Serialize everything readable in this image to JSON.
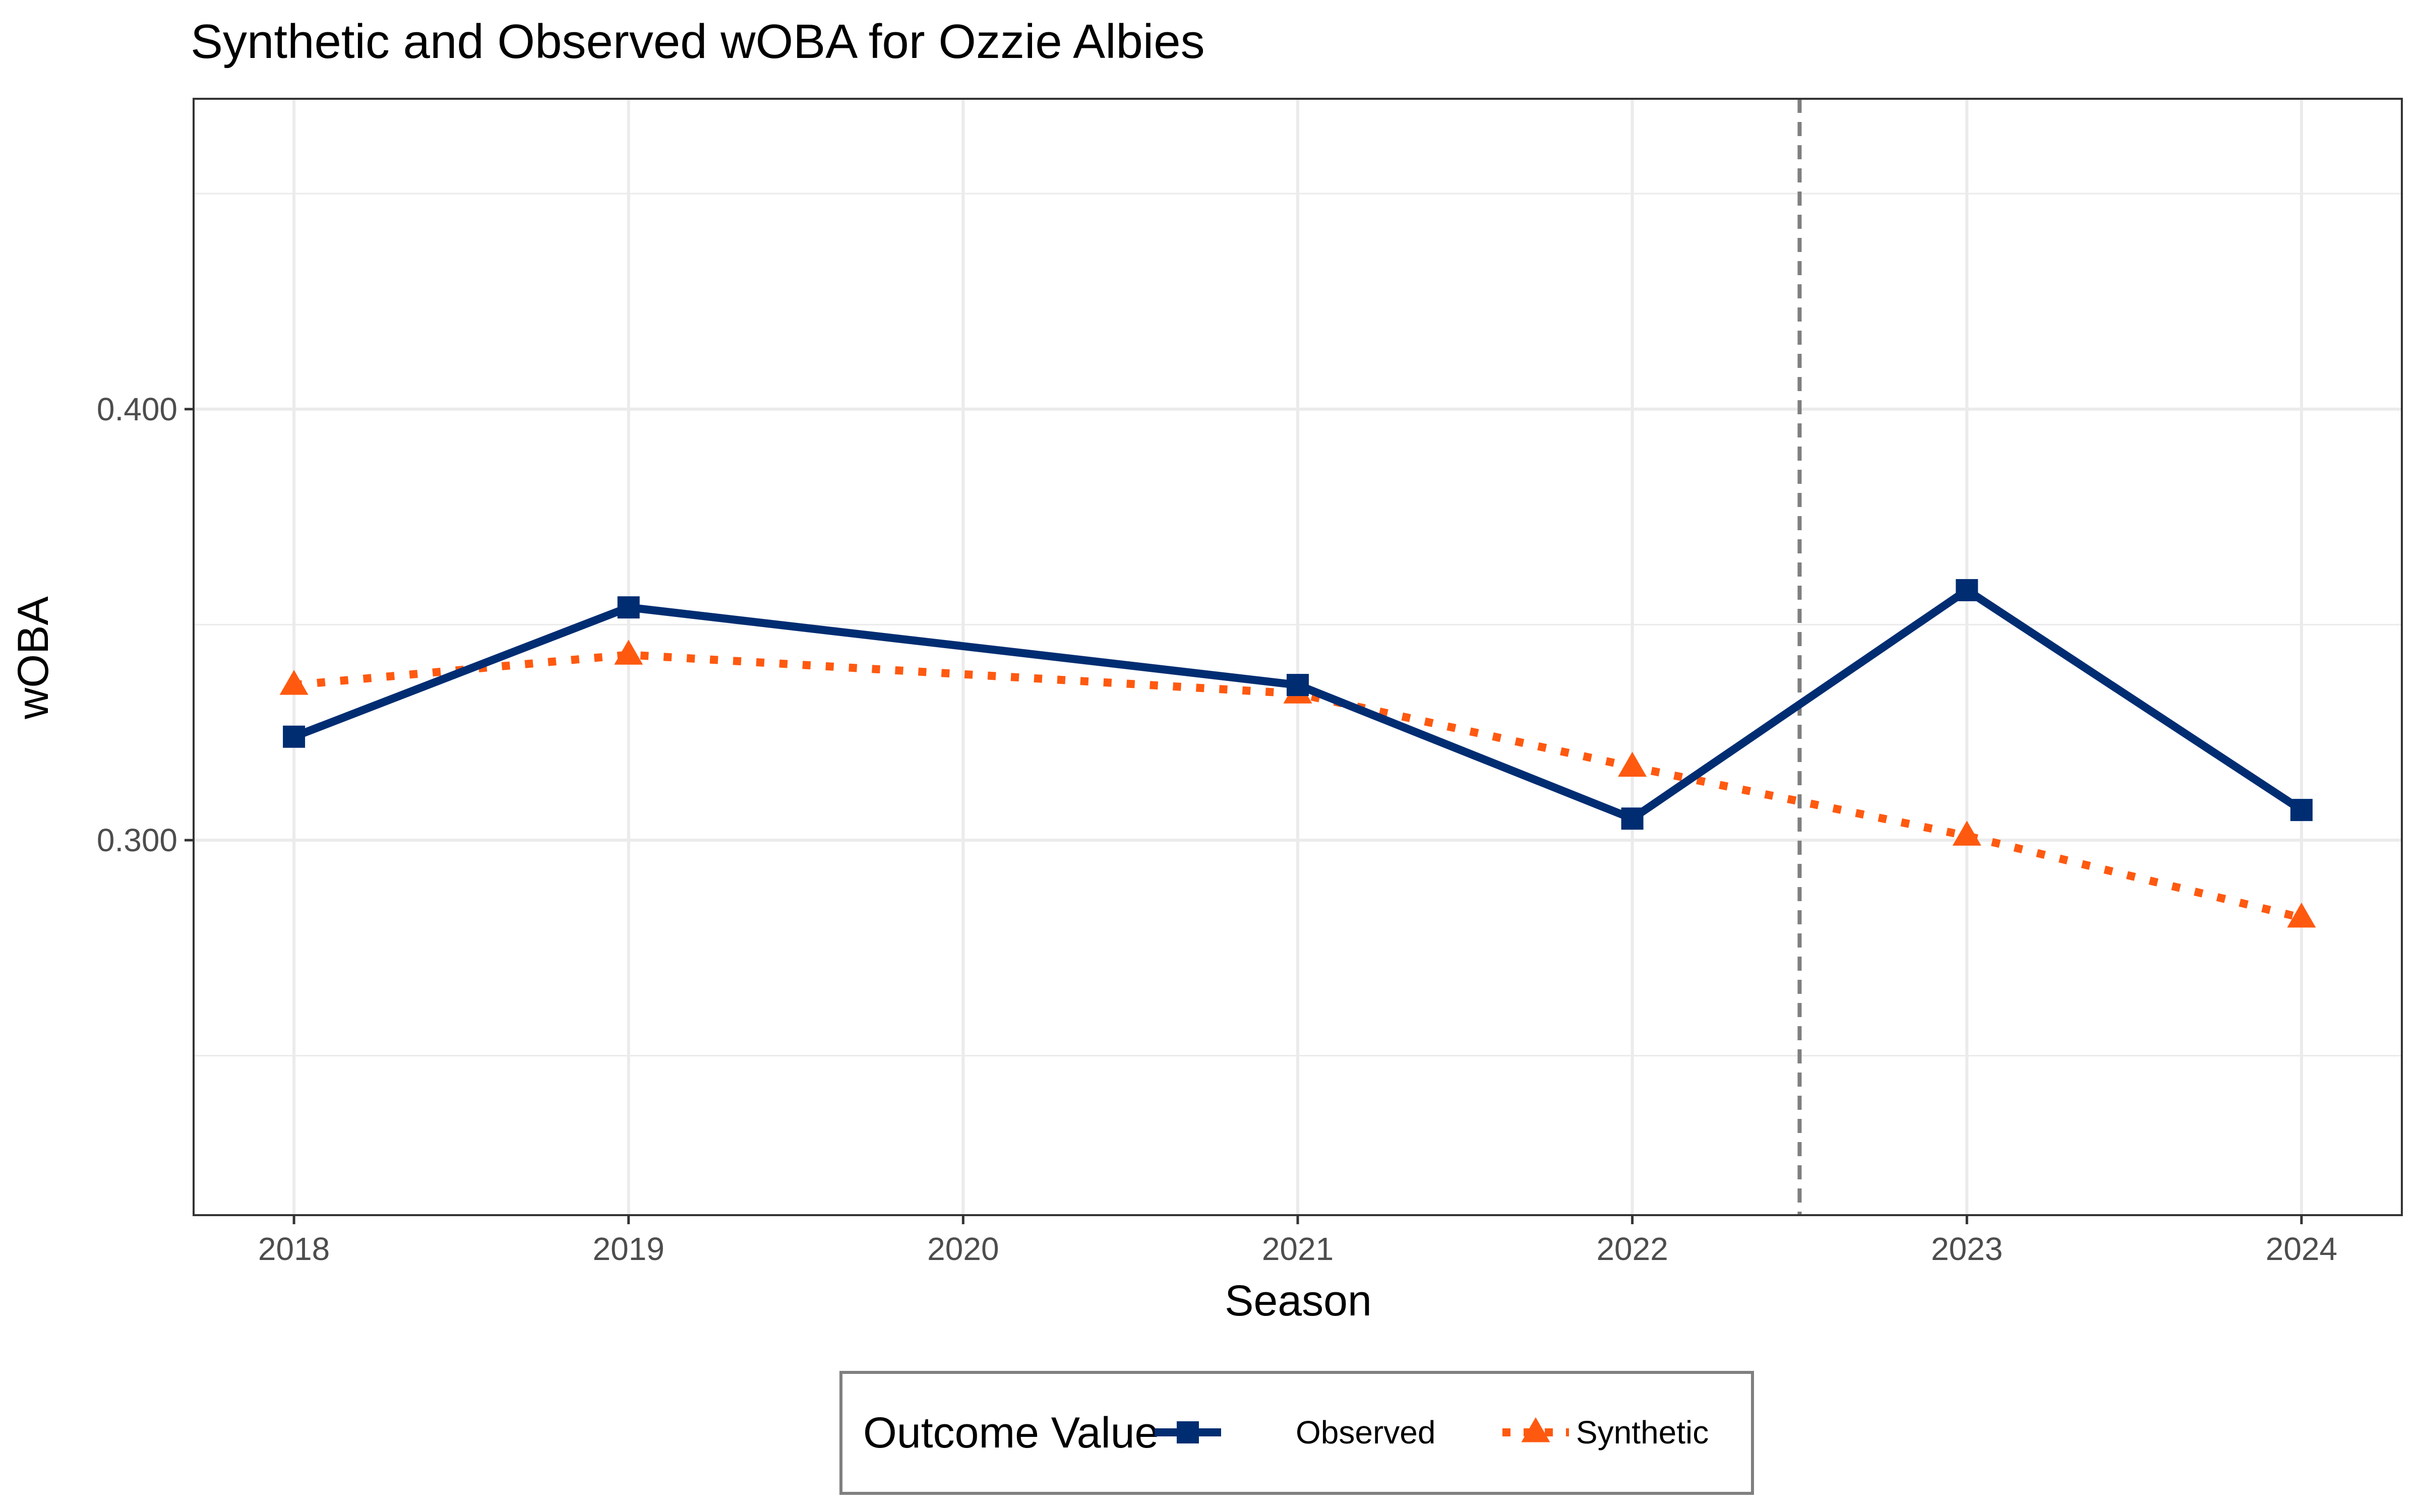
{
  "chart_data": {
    "type": "line",
    "title": "Synthetic and Observed wOBA for Ozzie Albies",
    "xlabel": "Season",
    "ylabel": "wOBA",
    "x": [
      2018,
      2019,
      2020,
      2021,
      2022,
      2023,
      2024
    ],
    "x_ticks": [
      "2018",
      "2019",
      "2020",
      "2021",
      "2022",
      "2023",
      "2024"
    ],
    "xlim": [
      2017.7,
      2024.3
    ],
    "y_ticks": [
      "0.400",
      "0.300"
    ],
    "ylim": [
      0.213,
      0.472
    ],
    "grid": true,
    "intervention_x": 2022.5,
    "series": [
      {
        "name": "Observed",
        "color": "#002D72",
        "line_style": "solid",
        "marker": "square",
        "points": [
          {
            "x": 2018,
            "y": 0.324
          },
          {
            "x": 2019,
            "y": 0.354
          },
          {
            "x": 2021,
            "y": 0.336
          },
          {
            "x": 2022,
            "y": 0.305
          },
          {
            "x": 2023,
            "y": 0.358
          },
          {
            "x": 2024,
            "y": 0.307
          }
        ]
      },
      {
        "name": "Synthetic",
        "color": "#FF5910",
        "line_style": "dotted",
        "marker": "triangle",
        "points": [
          {
            "x": 2018,
            "y": 0.336
          },
          {
            "x": 2019,
            "y": 0.343
          },
          {
            "x": 2021,
            "y": 0.334
          },
          {
            "x": 2022,
            "y": 0.317
          },
          {
            "x": 2023,
            "y": 0.301
          },
          {
            "x": 2024,
            "y": 0.282
          }
        ]
      }
    ],
    "legend": {
      "title": "Outcome Value",
      "position": "bottom"
    }
  }
}
